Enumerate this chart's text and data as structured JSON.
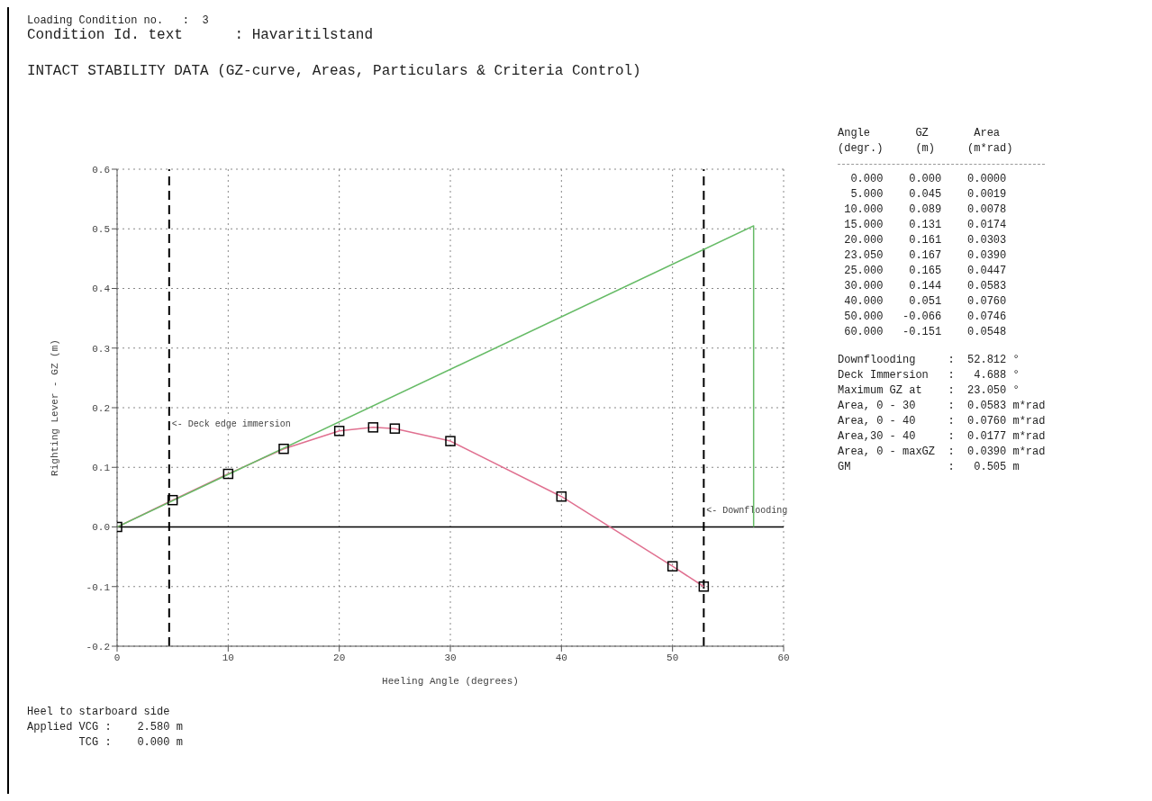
{
  "chart_data": {
    "type": "line",
    "title": "INTACT STABILITY DATA (GZ-curve, Areas, Particulars & Criteria Control)",
    "xlabel": "Heeling Angle (degrees)",
    "ylabel": "Righting Lever - GZ (m)",
    "xlim": [
      0,
      60
    ],
    "xticks": [
      0,
      10,
      20,
      30,
      40,
      50,
      60
    ],
    "ylim": [
      -0.2,
      0.6
    ],
    "yticks": [
      {
        "value": -0.2,
        "label": "-0.2"
      },
      {
        "value": -0.1,
        "label": "-0.1"
      },
      {
        "value": 0,
        "label": "0.0"
      },
      0.1,
      0.2,
      0.3,
      0.4,
      0.5,
      0.6
    ],
    "grid": true,
    "line_style": "solid",
    "series": [
      {
        "color": "#e07090",
        "marker": "square",
        "x": [
          0,
          5,
          10,
          15,
          20,
          23.05,
          25,
          30,
          40,
          50,
          52.812
        ],
        "values": [
          0,
          0.045,
          0.089,
          0.131,
          0.161,
          0.167,
          0.165,
          0.144,
          0.051,
          -0.066,
          -0.1
        ]
      },
      {
        "color": "#66bb66",
        "marker": "none",
        "x": [
          0,
          57.3,
          57.3
        ],
        "values": [
          0,
          0.505,
          0
        ]
      }
    ],
    "ref_lines": [
      {
        "axis": "x",
        "value": 4.688,
        "label": "<- Deck edge immersion",
        "color": "#000000",
        "line_style": "dashed"
      },
      {
        "axis": "x",
        "value": 52.812,
        "label": "<- Downflooding",
        "color": "#000000",
        "line_style": "dashed"
      },
      {
        "axis": "y",
        "value": 0,
        "color": "#000000",
        "line_style": "solid"
      }
    ],
    "annotations": [
      "Loading Condition no.   :  3",
      "Condition Id. text      : Havaritilstand",
      "Angle       GZ       Area",
      "(degr.)     (m)     (m*rad)",
      "  0.000    0.000    0.0000",
      "  5.000    0.045    0.0019",
      " 10.000    0.089    0.0078",
      " 15.000    0.131    0.0174",
      " 20.000    0.161    0.0303",
      " 23.050    0.167    0.0390",
      " 25.000    0.165    0.0447",
      " 30.000    0.144    0.0583",
      " 40.000    0.051    0.0760",
      " 50.000   -0.066    0.0746",
      " 60.000   -0.151    0.0548",
      "Downflooding     :  52.812 °",
      "Deck Immersion   :   4.688 °",
      "Maximum GZ at    :  23.050 °",
      "Area, 0 - 30     :  0.0583 m*rad",
      "Area, 0 - 40     :  0.0760 m*rad",
      "Area,30 - 40     :  0.0177 m*rad",
      "Area, 0 - maxGZ  :  0.0390 m*rad",
      "GM               :   0.505 m",
      "Heel to starboard side",
      "Applied VCG :    2.580 m",
      "        TCG :    0.000 m"
    ]
  }
}
